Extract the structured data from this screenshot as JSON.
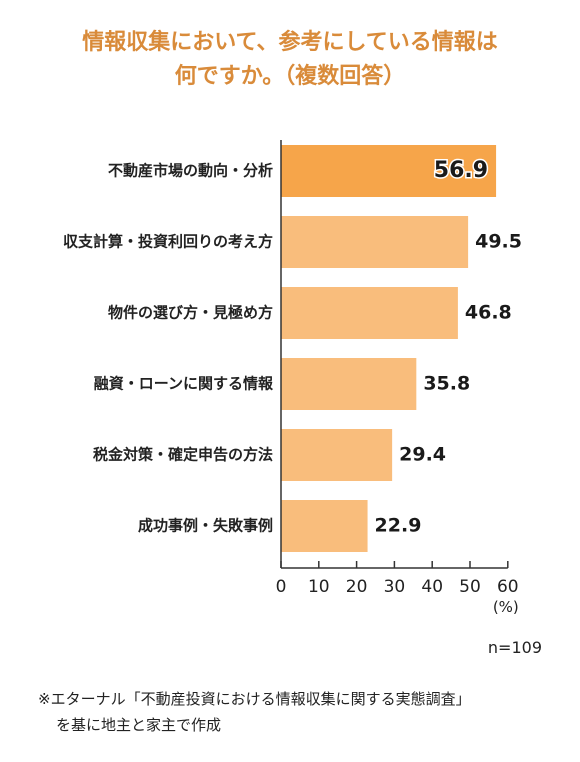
{
  "chart_data": {
    "type": "bar",
    "orientation": "horizontal",
    "title_lines": [
      "情報収集において、参考にしている情報は",
      "何ですか。（複数回答）"
    ],
    "categories": [
      "不動産市場の動向・分析",
      "収支計算・投資利回りの考え方",
      "物件の選び方・見極め方",
      "融資・ローンに関する情報",
      "税金対策・確定申告の方法",
      "成功事例・失敗事例"
    ],
    "values": [
      56.9,
      49.5,
      46.8,
      35.8,
      29.4,
      22.9
    ],
    "value_labels": [
      "56.9",
      "49.5",
      "46.8",
      "35.8",
      "29.4",
      "22.9"
    ],
    "xlim": [
      0,
      60
    ],
    "xticks": [
      "0",
      "10",
      "20",
      "30",
      "40",
      "50",
      "60"
    ],
    "unit_label": "(%)",
    "colors": {
      "highlight": "#f6a54a",
      "bar": "#f9bd7c",
      "title": "#d98b3a"
    }
  },
  "sample_size": "n=109",
  "source_note": {
    "line1": "※エターナル「不動産投資における情報収集に関する実態調査」",
    "line2": "を基に地主と家主で作成"
  }
}
